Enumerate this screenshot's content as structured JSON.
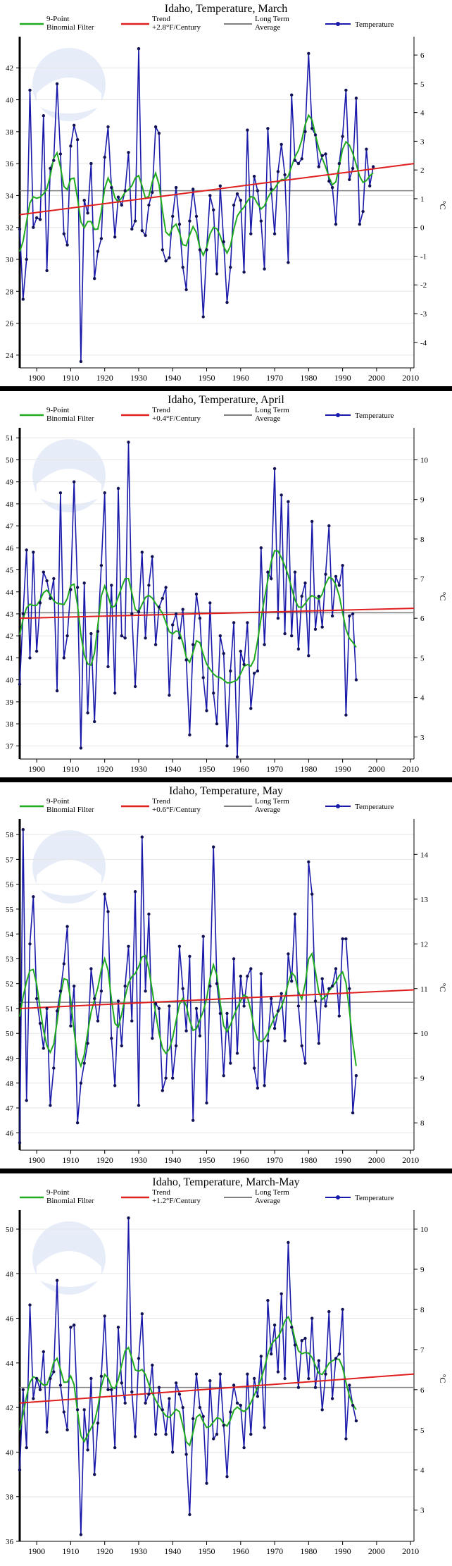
{
  "legend": {
    "filter": {
      "label": "9-Point\nBinomial Filter",
      "color": "#1faa1f"
    },
    "trend": {
      "label": "Trend",
      "color": "#e01f1f"
    },
    "average": {
      "label": "Long Term\nAverage",
      "color": "#808080"
    },
    "temperature": {
      "label": "Temperature",
      "color": "#1a1aaa"
    }
  },
  "right_axis_unit": "°C",
  "chart_data": [
    {
      "type": "line",
      "title": "Idaho, Temperature, March",
      "trend_label": "+2.8°F/Century",
      "x_ticks": [
        1900,
        1910,
        1920,
        1930,
        1940,
        1950,
        1960,
        1970,
        1980,
        1990,
        2000,
        2010
      ],
      "xlim": [
        1895,
        2011
      ],
      "ylim": [
        23.2,
        43.6
      ],
      "y_ticks": [
        24,
        26,
        28,
        30,
        32,
        34,
        36,
        38,
        40,
        42
      ],
      "c_ticks": [
        -4,
        -3,
        -2,
        -1,
        0,
        1,
        2,
        3,
        4,
        5,
        6
      ],
      "long_term_average": 34.3,
      "trend_line": {
        "x": [
          1895,
          2011
        ],
        "y": [
          32.8,
          36.0
        ]
      },
      "series": [
        {
          "name": "Temperature",
          "x_start": 1895,
          "values": [
            31.9,
            27.5,
            30.0,
            40.6,
            32.0,
            32.6,
            32.5,
            39.0,
            29.3,
            35.7,
            36.2,
            41.0,
            36.6,
            31.6,
            30.9,
            37.1,
            38.4,
            37.5,
            23.6,
            33.7,
            32.9,
            36.0,
            28.8,
            30.5,
            31.3,
            36.4,
            38.3,
            34.5,
            31.4,
            33.9,
            33.4,
            34.3,
            36.7,
            31.9,
            32.4,
            43.2,
            31.8,
            31.5,
            33.4,
            34.2,
            38.3,
            37.9,
            30.6,
            29.9,
            30.1,
            32.7,
            34.5,
            32.2,
            29.5,
            28.1,
            32.4,
            34.4,
            32.7,
            30.6,
            26.4,
            30.6,
            34.0,
            33.1,
            29.1,
            34.6,
            31.1,
            27.3,
            29.5,
            33.4,
            34.1,
            33.7,
            29.2,
            38.1,
            31.6,
            35.2,
            34.3,
            32.4,
            29.4,
            38.2,
            34.4,
            31.6,
            35.5,
            37.2,
            35.3,
            29.8,
            40.3,
            36.2,
            36.0,
            36.3,
            38.0,
            42.9,
            38.2,
            37.8,
            35.8,
            36.5,
            36.6,
            34.9,
            34.5,
            32.2,
            36.0,
            37.7,
            40.6,
            35.0,
            35.7,
            40.1,
            32.2,
            33.0,
            36.9,
            34.6,
            35.8
          ]
        }
      ]
    },
    {
      "type": "line",
      "title": "Idaho, Temperature, April",
      "trend_label": "+0.4°F/Century",
      "x_ticks": [
        1900,
        1910,
        1920,
        1930,
        1940,
        1950,
        1960,
        1970,
        1980,
        1990,
        2000,
        2010
      ],
      "xlim": [
        1895,
        2011
      ],
      "ylim": [
        36.4,
        51.2
      ],
      "y_ticks": [
        37,
        38,
        39,
        40,
        41,
        42,
        43,
        44,
        45,
        46,
        47,
        48,
        49,
        50,
        51
      ],
      "c_ticks": [
        3,
        4,
        5,
        6,
        7,
        8,
        9,
        10
      ],
      "long_term_average": 43.05,
      "trend_line": {
        "x": [
          1895,
          2011
        ],
        "y": [
          42.8,
          43.25
        ]
      },
      "series": [
        {
          "name": "Temperature",
          "x_start": 1895,
          "values": [
            39.8,
            43.0,
            45.9,
            41.0,
            45.8,
            41.3,
            43.5,
            44.9,
            44.5,
            43.7,
            44.6,
            39.5,
            48.5,
            41.0,
            42.0,
            44.1,
            49.0,
            44.2,
            36.9,
            44.4,
            38.5,
            42.1,
            38.1,
            42.2,
            45.2,
            48.5,
            40.6,
            44.3,
            39.4,
            48.7,
            42.0,
            41.9,
            50.8,
            43.0,
            39.7,
            43.1,
            45.8,
            41.9,
            44.3,
            45.6,
            41.6,
            43.3,
            43.7,
            44.2,
            39.3,
            42.5,
            43.0,
            41.9,
            43.2,
            40.9,
            37.5,
            41.6,
            43.9,
            42.8,
            40.1,
            38.6,
            43.5,
            39.4,
            38.0,
            42.0,
            41.2,
            37.0,
            40.4,
            42.6,
            36.5,
            41.3,
            40.7,
            42.6,
            38.7,
            40.3,
            40.4,
            46.0,
            41.6,
            44.9,
            44.6,
            49.6,
            42.8,
            48.4,
            42.1,
            48.1,
            42.0,
            44.9,
            41.4,
            43.8,
            44.4,
            41.1,
            47.2,
            42.3,
            43.8,
            42.4,
            44.8,
            47.0,
            42.9,
            44.7,
            44.3,
            45.2,
            38.4,
            42.9,
            43.0,
            40.0
          ]
        }
      ]
    },
    {
      "type": "line",
      "title": "Idaho, Temperature, May",
      "trend_label": "+0.6°F/Century",
      "x_ticks": [
        1900,
        1910,
        1920,
        1930,
        1940,
        1950,
        1960,
        1970,
        1980,
        1990,
        2000,
        2010
      ],
      "xlim": [
        1895,
        2011
      ],
      "ylim": [
        45.3,
        58.4
      ],
      "y_ticks": [
        46,
        47,
        48,
        49,
        50,
        51,
        52,
        53,
        54,
        55,
        56,
        57,
        58
      ],
      "c_ticks": [
        8,
        9,
        10,
        11,
        12,
        13,
        14
      ],
      "long_term_average": 51.25,
      "trend_line": {
        "x": [
          1895,
          2011
        ],
        "y": [
          51.0,
          51.75
        ]
      },
      "series": [
        {
          "name": "Temperature",
          "x_start": 1895,
          "values": [
            45.6,
            58.2,
            47.3,
            53.6,
            55.5,
            51.4,
            50.4,
            49.4,
            51.0,
            47.1,
            48.6,
            50.9,
            51.7,
            52.8,
            54.3,
            50.3,
            51.9,
            46.4,
            48.0,
            48.8,
            49.6,
            52.6,
            51.4,
            50.5,
            51.7,
            55.6,
            54.9,
            49.8,
            47.9,
            51.3,
            49.5,
            51.9,
            53.5,
            50.5,
            55.7,
            47.1,
            57.9,
            51.7,
            54.8,
            49.8,
            51.2,
            51.0,
            47.7,
            48.2,
            51.1,
            48.2,
            49.5,
            53.5,
            51.8,
            50.1,
            53.1,
            46.5,
            51.0,
            49.9,
            53.9,
            47.2,
            51.9,
            57.5,
            52.0,
            50.8,
            48.3,
            50.8,
            48.8,
            53.0,
            49.2,
            52.3,
            51.1,
            52.3,
            52.6,
            48.6,
            47.8,
            52.4,
            47.9,
            49.7,
            51.4,
            50.2,
            50.9,
            51.6,
            49.7,
            53.2,
            52.1,
            54.8,
            51.1,
            49.5,
            48.8,
            56.9,
            55.6,
            51.3,
            49.6,
            52.2,
            51.1,
            51.8,
            51.9,
            52.6,
            50.7,
            53.8,
            53.8,
            51.8,
            46.8,
            48.3
          ]
        }
      ]
    },
    {
      "type": "line",
      "title": "Idaho, Temperature, March-May",
      "trend_label": "+1.2°F/Century",
      "x_ticks": [
        1900,
        1910,
        1920,
        1930,
        1940,
        1950,
        1960,
        1970,
        1980,
        1990,
        2000,
        2010
      ],
      "xlim": [
        1895,
        2011
      ],
      "ylim": [
        36.0,
        50.6
      ],
      "y_ticks": [
        36,
        38,
        40,
        42,
        44,
        46,
        48,
        50
      ],
      "c_ticks": [
        3,
        4,
        5,
        6,
        7,
        8,
        9,
        10
      ],
      "long_term_average": 42.9,
      "trend_line": {
        "x": [
          1895,
          2011
        ],
        "y": [
          42.2,
          43.5
        ]
      },
      "series": [
        {
          "name": "Temperature",
          "x_start": 1895,
          "values": [
            39.2,
            42.8,
            40.2,
            46.6,
            42.4,
            43.3,
            42.8,
            44.5,
            40.9,
            43.3,
            43.6,
            47.7,
            43.0,
            41.8,
            41.0,
            45.6,
            45.7,
            41.9,
            36.3,
            41.9,
            40.1,
            43.3,
            39.0,
            41.3,
            43.4,
            46.1,
            42.8,
            42.8,
            40.2,
            45.6,
            43.1,
            42.2,
            50.5,
            42.7,
            40.7,
            44.2,
            46.2,
            42.2,
            42.6,
            43.9,
            40.8,
            42.9,
            41.9,
            40.8,
            42.4,
            40.0,
            43.1,
            42.6,
            42.0,
            39.9,
            37.2,
            41.5,
            43.5,
            42.0,
            41.6,
            38.6,
            43.2,
            40.6,
            40.8,
            43.5,
            41.2,
            38.9,
            41.8,
            43.0,
            42.2,
            42.1,
            40.2,
            43.5,
            40.8,
            43.3,
            42.5,
            44.3,
            41.1,
            46.8,
            44.4,
            45.7,
            43.6,
            47.1,
            43.3,
            49.4,
            45.6,
            44.8,
            42.9,
            45.0,
            45.1,
            43.3,
            46.0,
            42.9,
            44.1,
            41.9,
            43.5,
            46.3,
            42.4,
            44.2,
            44.4,
            46.4,
            40.6,
            43.0,
            42.1,
            41.4
          ]
        }
      ]
    }
  ]
}
